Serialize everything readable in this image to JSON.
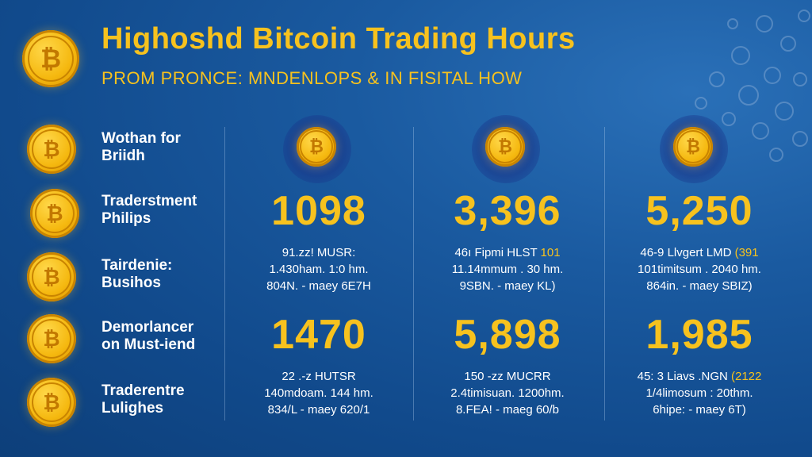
{
  "header": {
    "title": "Highoshd Bitcoin Trading Hours",
    "subtitle": "PROM PRONCE: MNDENLOPS & IN FISITAL HOW"
  },
  "rows": [
    {
      "line1": "Wothan for",
      "line2": "Briidh"
    },
    {
      "line1": "Traderstment",
      "line2": "Philips"
    },
    {
      "line1": "Tairdenie:",
      "line2": "Busihos"
    },
    {
      "line1": "Demorlancer",
      "line2": "on Must-iend"
    },
    {
      "line1": "Traderentre",
      "line2": "Lulighes"
    }
  ],
  "columns": [
    {
      "icon": "bitcoin-icon",
      "top": {
        "value": "1098",
        "l1": "91.zz! MUSR:",
        "l1_hl": "",
        "l2": "1.430ham. 1:0 hm.",
        "l3": "804N. - maey 6E7H"
      },
      "bottom": {
        "value": "1470",
        "l1": "22 .-z HUTSR",
        "l1_hl": "",
        "l2": "140mdoam. 144 hm.",
        "l3": "834/L - maey 620/1"
      }
    },
    {
      "icon": "bitcoin-icon",
      "top": {
        "value": "3,396",
        "l1": "46ı Fipmi HLST ",
        "l1_hl": "101",
        "l2": "11.14mmum . 30 hm.",
        "l3": "9SBN. - maey KL)"
      },
      "bottom": {
        "value": "5,898",
        "l1": "150 -zz MUCRR",
        "l1_hl": "",
        "l2": "2.4timisuan. 1200hm.",
        "l3": "8.FEA! - maeg 60/b"
      }
    },
    {
      "icon": "bitcoin-icon",
      "top": {
        "value": "5,250",
        "l1": "46-9 Llvgert LMD ",
        "l1_hl": "(391",
        "l2": "101timitsum . 2040 hm.",
        "l3": "864in. - maey SBIZ)"
      },
      "bottom": {
        "value": "1,985",
        "l1": "45: 3 Liavs .NGN ",
        "l1_hl": "(2122",
        "l2": "1/4limosum : 20thm.",
        "l3": "6hipe: - maey 6T)"
      }
    }
  ],
  "colors": {
    "accent": "#f7c21e",
    "background": "#1a5aa0",
    "text": "#ffffff"
  }
}
